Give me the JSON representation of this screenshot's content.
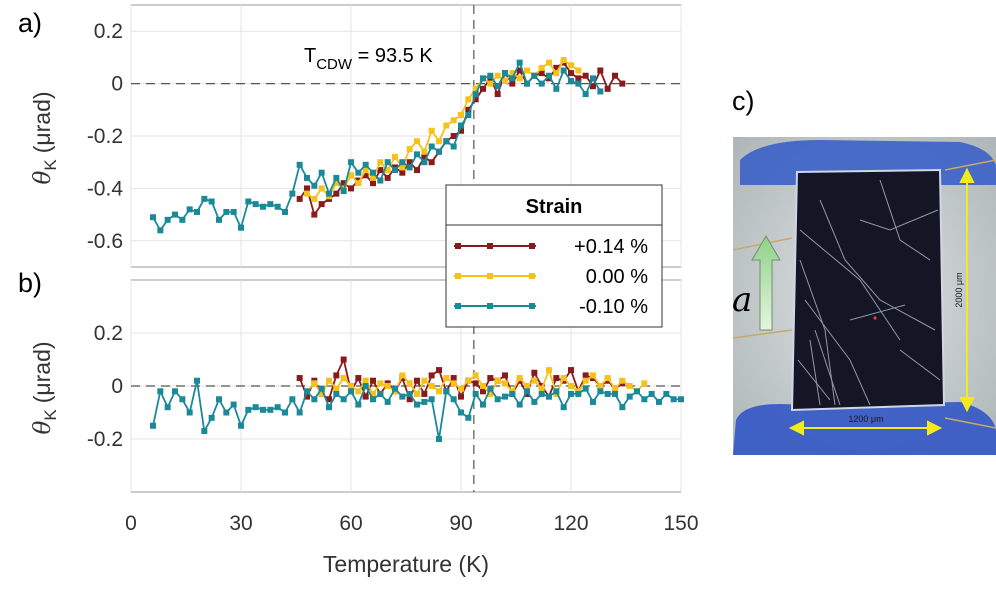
{
  "chart_data": [
    {
      "panel": "a)",
      "type": "line",
      "xlabel": "Temperature (K)",
      "ylabel_symbol": "θ",
      "ylabel_sub": "K",
      "ylabel_unit": "(μrad)",
      "xlim": [
        0,
        150
      ],
      "ylim": [
        -0.7,
        0.3
      ],
      "xticks": [
        "0",
        "30",
        "60",
        "90",
        "120",
        "150"
      ],
      "yticks": [
        "0.2",
        "0",
        "-0.2",
        "-0.4",
        "-0.6"
      ],
      "grid": true,
      "annotation": {
        "text": "T",
        "sub": "CDW",
        "suffix": " = 93.5 K"
      },
      "vline_x": 93.5,
      "hline_y": 0,
      "legend": {
        "title": "Strain",
        "placement": "bottom-right"
      },
      "series": [
        {
          "name": "+0.14 %",
          "color": "#8b1a1a",
          "x": [
            46,
            48,
            50,
            52,
            54,
            56,
            58,
            60,
            62,
            64,
            66,
            68,
            70,
            72,
            74,
            76,
            78,
            80,
            82,
            84,
            86,
            88,
            90,
            92,
            94,
            96,
            98,
            100,
            102,
            104,
            106,
            108,
            110,
            112,
            114,
            116,
            118,
            120,
            122,
            124,
            126,
            128,
            130,
            132,
            134
          ],
          "y": [
            -0.44,
            -0.4,
            -0.5,
            -0.46,
            -0.44,
            -0.42,
            -0.38,
            -0.4,
            -0.37,
            -0.35,
            -0.38,
            -0.33,
            -0.36,
            -0.32,
            -0.34,
            -0.3,
            -0.33,
            -0.28,
            -0.3,
            -0.26,
            -0.22,
            -0.2,
            -0.18,
            -0.1,
            -0.06,
            -0.02,
            0.02,
            -0.04,
            0.04,
            0.0,
            0.05,
            0.0,
            0.03,
            0.04,
            0.02,
            0.06,
            0.08,
            0.04,
            0.02,
            0.03,
            -0.01,
            0.05,
            -0.02,
            0.03,
            0.0
          ]
        },
        {
          "name": "0.00 %",
          "color": "#f5c21a",
          "x": [
            48,
            50,
            52,
            54,
            56,
            58,
            60,
            62,
            64,
            66,
            68,
            70,
            72,
            74,
            76,
            78,
            80,
            82,
            84,
            86,
            88,
            90,
            92,
            94,
            96,
            98,
            100,
            102,
            104,
            106,
            108,
            110,
            112,
            114,
            116,
            118,
            120,
            122
          ],
          "y": [
            -0.42,
            -0.44,
            -0.4,
            -0.43,
            -0.38,
            -0.4,
            -0.35,
            -0.38,
            -0.33,
            -0.36,
            -0.3,
            -0.33,
            -0.28,
            -0.32,
            -0.25,
            -0.22,
            -0.26,
            -0.18,
            -0.22,
            -0.16,
            -0.14,
            -0.12,
            -0.06,
            -0.02,
            0.02,
            0.0,
            0.03,
            0.01,
            0.04,
            0.02,
            0.05,
            0.03,
            0.06,
            0.08,
            0.04,
            0.09,
            0.07,
            0.05
          ]
        },
        {
          "name": "-0.10 %",
          "color": "#1a8a99",
          "x": [
            6,
            8,
            10,
            12,
            14,
            16,
            18,
            20,
            22,
            24,
            26,
            28,
            30,
            32,
            34,
            36,
            38,
            40,
            42,
            44,
            46,
            48,
            50,
            52,
            54,
            56,
            58,
            60,
            62,
            64,
            66,
            68,
            70,
            72,
            74,
            76,
            78,
            80,
            82,
            84,
            86,
            88,
            90,
            92,
            94,
            96,
            98,
            100,
            102,
            104,
            106,
            108,
            110,
            112,
            114,
            116,
            118,
            120,
            122,
            124,
            126,
            128
          ],
          "y": [
            -0.51,
            -0.56,
            -0.52,
            -0.5,
            -0.52,
            -0.48,
            -0.49,
            -0.44,
            -0.45,
            -0.52,
            -0.49,
            -0.49,
            -0.55,
            -0.45,
            -0.46,
            -0.47,
            -0.46,
            -0.47,
            -0.49,
            -0.42,
            -0.31,
            -0.36,
            -0.39,
            -0.34,
            -0.42,
            -0.36,
            -0.41,
            -0.3,
            -0.34,
            -0.31,
            -0.34,
            -0.37,
            -0.3,
            -0.33,
            -0.3,
            -0.32,
            -0.27,
            -0.3,
            -0.24,
            -0.26,
            -0.22,
            -0.24,
            -0.16,
            -0.12,
            -0.04,
            0.02,
            0.03,
            -0.01,
            0.04,
            0.02,
            0.08,
            0.0,
            0.03,
            0.0,
            0.03,
            -0.02,
            0.05,
            0.01,
            0.0,
            -0.04,
            0.02,
            -0.03
          ]
        }
      ]
    },
    {
      "panel": "b)",
      "type": "line",
      "xlabel": "Temperature (K)",
      "ylabel_symbol": "θ",
      "ylabel_sub": "K",
      "ylabel_unit": "(μrad)",
      "xlim": [
        0,
        150
      ],
      "ylim": [
        -0.4,
        0.4
      ],
      "xticks": [
        "0",
        "30",
        "60",
        "90",
        "120",
        "150"
      ],
      "yticks": [
        "0.2",
        "0",
        "-0.2"
      ],
      "grid": true,
      "vline_x": 93.5,
      "hline_y": 0,
      "series": [
        {
          "name": "+0.14 %",
          "color": "#8b1a1a",
          "x": [
            46,
            48,
            50,
            52,
            54,
            56,
            58,
            60,
            62,
            64,
            66,
            68,
            70,
            72,
            74,
            76,
            78,
            80,
            82,
            84,
            86,
            88,
            90,
            92,
            94,
            96,
            98,
            100,
            102,
            104,
            106,
            108,
            110,
            112,
            114,
            116,
            118,
            120,
            122,
            124,
            126,
            128,
            130,
            132,
            134
          ],
          "y": [
            0.03,
            -0.04,
            0.02,
            -0.03,
            -0.05,
            0.04,
            0.1,
            -0.02,
            0.03,
            -0.04,
            0.02,
            -0.03,
            0.01,
            -0.02,
            0.03,
            -0.05,
            0.02,
            -0.03,
            0.04,
            0.06,
            -0.02,
            0.03,
            -0.04,
            0.02,
            0.01,
            -0.02,
            0.03,
            0.02,
            0.04,
            -0.03,
            0.02,
            -0.03,
            0.05,
            0.0,
            -0.04,
            0.03,
            0.02,
            0.06,
            -0.02,
            0.04,
            0.03,
            0.0,
            0.02,
            -0.01,
            0.01
          ]
        },
        {
          "name": "0.00 %",
          "color": "#f5c21a",
          "x": [
            48,
            50,
            52,
            54,
            56,
            58,
            60,
            62,
            64,
            66,
            68,
            70,
            72,
            74,
            76,
            78,
            80,
            82,
            84,
            86,
            88,
            90,
            92,
            94,
            96,
            98,
            100,
            102,
            104,
            106,
            108,
            110,
            112,
            114,
            116,
            118,
            120,
            122,
            124,
            126,
            128,
            130,
            132,
            134,
            136,
            138,
            140
          ],
          "y": [
            -0.02,
            0.01,
            -0.03,
            0.02,
            -0.01,
            0.03,
            0.0,
            -0.02,
            0.02,
            -0.03,
            0.01,
            0.0,
            -0.02,
            0.04,
            0.01,
            -0.03,
            0.02,
            0.0,
            -0.02,
            0.03,
            0.01,
            -0.01,
            0.02,
            0.04,
            0.0,
            -0.03,
            0.02,
            0.01,
            -0.02,
            0.03,
            0.0,
            0.02,
            -0.01,
            0.06,
            -0.03,
            0.03,
            0.0,
            -0.02,
            0.02,
            0.04,
            0.0,
            0.03,
            -0.01,
            0.02,
            0.0,
            -0.02,
            0.01
          ]
        },
        {
          "name": "-0.10 %",
          "color": "#1a8a99",
          "x": [
            6,
            8,
            10,
            12,
            14,
            16,
            18,
            20,
            22,
            24,
            26,
            28,
            30,
            32,
            34,
            36,
            38,
            40,
            42,
            44,
            46,
            48,
            50,
            52,
            54,
            56,
            58,
            60,
            62,
            64,
            66,
            68,
            70,
            72,
            74,
            76,
            78,
            80,
            82,
            84,
            86,
            88,
            90,
            92,
            94,
            96,
            98,
            100,
            102,
            104,
            106,
            108,
            110,
            112,
            114,
            116,
            118,
            120,
            122,
            124,
            126,
            128,
            130,
            132,
            134,
            136,
            138,
            140,
            142,
            144,
            146,
            148,
            150
          ],
          "y": [
            -0.15,
            -0.02,
            -0.08,
            -0.02,
            -0.05,
            -0.1,
            0.02,
            -0.17,
            -0.12,
            -0.05,
            -0.1,
            -0.07,
            -0.15,
            -0.09,
            -0.08,
            -0.09,
            -0.09,
            -0.08,
            -0.1,
            -0.05,
            -0.1,
            -0.02,
            -0.05,
            -0.01,
            -0.08,
            -0.03,
            -0.05,
            -0.02,
            -0.07,
            0.0,
            -0.05,
            -0.03,
            -0.06,
            -0.01,
            -0.04,
            -0.03,
            -0.07,
            -0.06,
            -0.05,
            -0.2,
            -0.02,
            -0.05,
            -0.1,
            -0.12,
            -0.03,
            -0.07,
            -0.01,
            -0.05,
            -0.04,
            -0.03,
            -0.07,
            -0.02,
            -0.06,
            -0.03,
            -0.04,
            -0.02,
            -0.08,
            -0.03,
            -0.03,
            -0.01,
            -0.06,
            -0.02,
            -0.03,
            -0.03,
            -0.08,
            -0.04,
            -0.02,
            -0.05,
            -0.03,
            -0.06,
            -0.03,
            -0.05,
            -0.05
          ]
        }
      ]
    }
  ],
  "photo": {
    "panel": "c)",
    "axis_symbol": "a",
    "width_label": "1200 μm",
    "height_label": "2000 μm"
  }
}
